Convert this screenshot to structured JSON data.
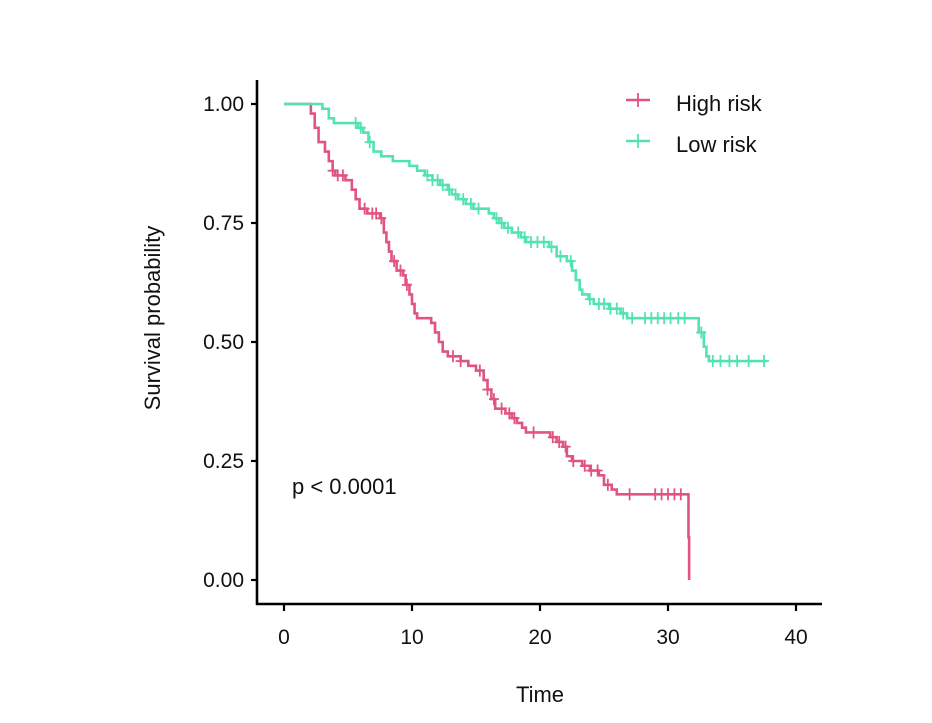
{
  "chart_data": {
    "type": "line",
    "subtype": "kaplan-meier",
    "xlabel": "Time",
    "ylabel": "Survival probability",
    "xlim": [
      0,
      40
    ],
    "ylim": [
      0,
      1
    ],
    "x_ticks": [
      0,
      10,
      20,
      30,
      40
    ],
    "x_tick_labels": [
      "0",
      "10",
      "20",
      "30",
      "40"
    ],
    "y_ticks": [
      0,
      0.25,
      0.5,
      0.75,
      1
    ],
    "y_tick_labels": [
      "0.00",
      "0.25",
      "0.50",
      "0.75",
      "1.00"
    ],
    "legend_position": "top-right",
    "annotation": "p < 0.0001",
    "series": [
      {
        "name": "High risk",
        "color": "#e0547f",
        "steps": [
          [
            0,
            1.0
          ],
          [
            2.1,
            0.98
          ],
          [
            2.4,
            0.95
          ],
          [
            2.7,
            0.92
          ],
          [
            3.2,
            0.9
          ],
          [
            3.5,
            0.88
          ],
          [
            3.8,
            0.86
          ],
          [
            4.0,
            0.85
          ],
          [
            4.8,
            0.84
          ],
          [
            5.3,
            0.82
          ],
          [
            5.6,
            0.8
          ],
          [
            5.9,
            0.78
          ],
          [
            6.5,
            0.77
          ],
          [
            7.5,
            0.76
          ],
          [
            7.8,
            0.73
          ],
          [
            8.0,
            0.71
          ],
          [
            8.2,
            0.69
          ],
          [
            8.4,
            0.67
          ],
          [
            8.8,
            0.65
          ],
          [
            9.3,
            0.64
          ],
          [
            9.5,
            0.62
          ],
          [
            9.8,
            0.6
          ],
          [
            10.0,
            0.58
          ],
          [
            10.2,
            0.56
          ],
          [
            10.4,
            0.55
          ],
          [
            11.5,
            0.54
          ],
          [
            11.8,
            0.52
          ],
          [
            12.1,
            0.5
          ],
          [
            12.4,
            0.48
          ],
          [
            12.8,
            0.47
          ],
          [
            13.8,
            0.46
          ],
          [
            14.4,
            0.45
          ],
          [
            15.0,
            0.44
          ],
          [
            15.6,
            0.42
          ],
          [
            15.9,
            0.4
          ],
          [
            16.2,
            0.38
          ],
          [
            16.5,
            0.36
          ],
          [
            17.3,
            0.35
          ],
          [
            17.8,
            0.34
          ],
          [
            18.2,
            0.33
          ],
          [
            18.6,
            0.32
          ],
          [
            18.9,
            0.31
          ],
          [
            20.8,
            0.3
          ],
          [
            21.3,
            0.29
          ],
          [
            21.8,
            0.28
          ],
          [
            22.1,
            0.26
          ],
          [
            22.5,
            0.25
          ],
          [
            23.3,
            0.24
          ],
          [
            23.9,
            0.23
          ],
          [
            24.6,
            0.22
          ],
          [
            25.0,
            0.2
          ],
          [
            25.6,
            0.19
          ],
          [
            26.0,
            0.18
          ],
          [
            31.6,
            0.18
          ],
          [
            31.6,
            0.09
          ],
          [
            31.65,
            0.0
          ]
        ],
        "censor_times": [
          3.8,
          4.2,
          4.6,
          6.3,
          6.9,
          7.2,
          7.6,
          8.6,
          9.1,
          9.6,
          13.2,
          13.8,
          15.3,
          15.9,
          16.4,
          17.0,
          17.6,
          18.0,
          19.5,
          21.0,
          21.5,
          22.0,
          22.6,
          23.5,
          24.0,
          24.5,
          25.3,
          27.0,
          29.0,
          29.5,
          30.0,
          30.5,
          31.0
        ],
        "end_time": 31.65
      },
      {
        "name": "Low risk",
        "color": "#52e3b0",
        "steps": [
          [
            0,
            1.0
          ],
          [
            2.5,
            1.0
          ],
          [
            3.0,
            0.99
          ],
          [
            3.5,
            0.97
          ],
          [
            3.9,
            0.96
          ],
          [
            5.8,
            0.95
          ],
          [
            6.2,
            0.94
          ],
          [
            6.6,
            0.92
          ],
          [
            7.0,
            0.9
          ],
          [
            7.6,
            0.89
          ],
          [
            8.5,
            0.88
          ],
          [
            9.8,
            0.87
          ],
          [
            10.4,
            0.86
          ],
          [
            11.0,
            0.85
          ],
          [
            11.6,
            0.84
          ],
          [
            12.2,
            0.83
          ],
          [
            12.8,
            0.82
          ],
          [
            13.1,
            0.81
          ],
          [
            13.6,
            0.8
          ],
          [
            14.2,
            0.79
          ],
          [
            14.8,
            0.78
          ],
          [
            16.0,
            0.77
          ],
          [
            16.4,
            0.76
          ],
          [
            16.8,
            0.75
          ],
          [
            17.2,
            0.74
          ],
          [
            17.8,
            0.73
          ],
          [
            18.5,
            0.72
          ],
          [
            18.9,
            0.71
          ],
          [
            20.7,
            0.7
          ],
          [
            21.3,
            0.68
          ],
          [
            22.1,
            0.67
          ],
          [
            22.5,
            0.65
          ],
          [
            22.8,
            0.63
          ],
          [
            23.1,
            0.61
          ],
          [
            23.3,
            0.6
          ],
          [
            23.8,
            0.59
          ],
          [
            24.2,
            0.58
          ],
          [
            25.4,
            0.57
          ],
          [
            26.3,
            0.56
          ],
          [
            26.8,
            0.55
          ],
          [
            32.2,
            0.55
          ],
          [
            32.4,
            0.52
          ],
          [
            32.8,
            0.49
          ],
          [
            33.0,
            0.47
          ],
          [
            33.2,
            0.46
          ],
          [
            37.7,
            0.46
          ]
        ],
        "censor_times": [
          5.6,
          6.0,
          6.7,
          11.2,
          11.6,
          12.0,
          12.4,
          12.9,
          13.4,
          14.0,
          14.6,
          15.2,
          16.6,
          17.0,
          17.5,
          18.3,
          18.8,
          19.3,
          19.8,
          20.3,
          20.9,
          21.6,
          22.4,
          23.9,
          24.6,
          25.0,
          25.5,
          26.0,
          26.5,
          27.2,
          28.2,
          28.7,
          29.2,
          29.7,
          30.2,
          30.8,
          31.3,
          32.6,
          33.5,
          34.1,
          34.8,
          35.4,
          36.3,
          37.5
        ],
        "end_time": 37.7
      }
    ]
  }
}
